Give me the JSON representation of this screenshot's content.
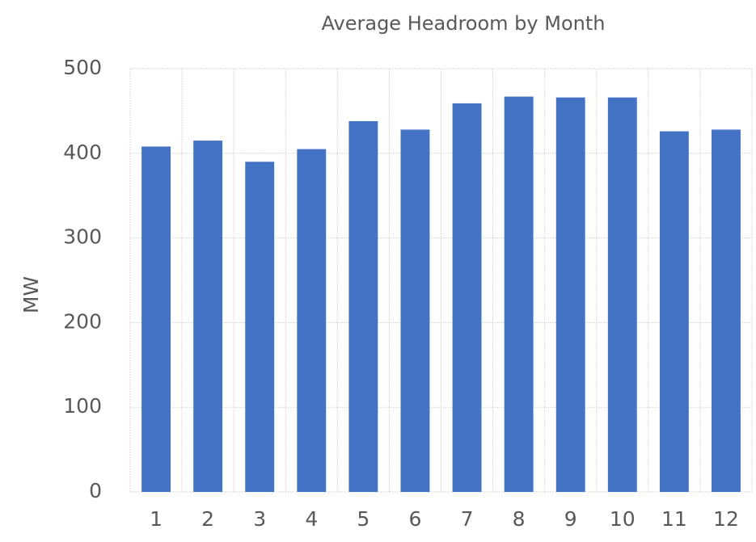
{
  "chart_data": {
    "type": "bar",
    "title": "Average Headroom by Month",
    "y_label": "MW",
    "categories": [
      "1",
      "2",
      "3",
      "4",
      "5",
      "6",
      "7",
      "8",
      "9",
      "10",
      "11",
      "12"
    ],
    "values": [
      408,
      415,
      390,
      405,
      438,
      428,
      459,
      467,
      466,
      466,
      426,
      428
    ],
    "color": "#4472c4",
    "ylim": [
      0,
      500
    ],
    "yticks": [
      0,
      100,
      200,
      300,
      400,
      500
    ],
    "grid": true
  }
}
